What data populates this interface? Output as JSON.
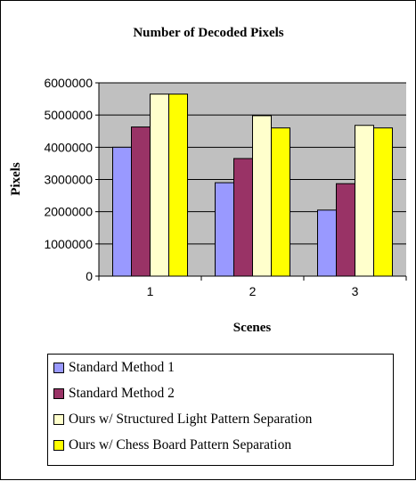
{
  "chart_data": {
    "type": "bar",
    "title": "Number of Decoded Pixels",
    "xlabel": "Scenes",
    "ylabel": "Pixels",
    "categories": [
      "1",
      "2",
      "3"
    ],
    "ylim": [
      0,
      6000000
    ],
    "yticks": [
      "0",
      "1000000",
      "2000000",
      "3000000",
      "4000000",
      "5000000",
      "6000000"
    ],
    "grid": true,
    "legend_position": "bottom",
    "plot_background": "#c0c0c0",
    "series": [
      {
        "name": "Standard Method 1",
        "color": "#9999ff",
        "values": [
          4000000,
          2900000,
          2050000
        ]
      },
      {
        "name": "Standard Method 2",
        "color": "#993366",
        "values": [
          4630000,
          3650000,
          2870000
        ]
      },
      {
        "name": "Ours w/ Structured Light Pattern Separation",
        "color": "#ffffcc",
        "values": [
          5650000,
          4980000,
          4680000
        ]
      },
      {
        "name": "Ours w/ Chess Board Pattern Separation",
        "color": "#ffff00",
        "values": [
          5650000,
          4600000,
          4600000
        ]
      }
    ]
  }
}
